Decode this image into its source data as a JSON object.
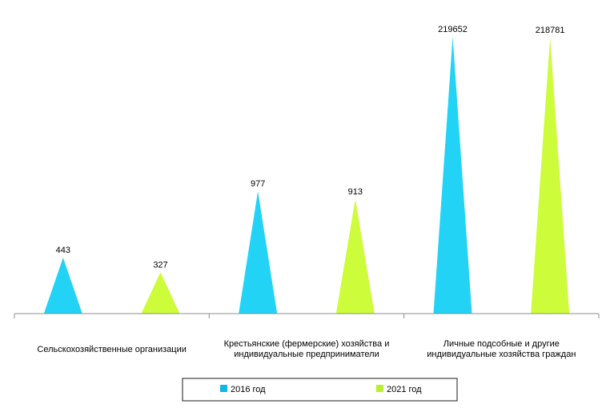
{
  "chart_data": {
    "type": "bar",
    "mark_shape": "triangle",
    "categories": [
      [
        "Сельскохозяйственные организации"
      ],
      [
        "Крестьянские (фермерские) хозяйства и",
        "индивидуальные предприниматели"
      ],
      [
        "Личные подсобные и другие",
        "индивидуальные хозяйства граждан"
      ]
    ],
    "series": [
      {
        "name": "2016 год",
        "color": "#22d3f5",
        "legend_color": "#11b5e8",
        "values": [
          443,
          977,
          219652
        ]
      },
      {
        "name": "2021 год",
        "color": "#cdfc3a",
        "legend_color": "#b9ef2c",
        "values": [
          327,
          913,
          218781
        ]
      }
    ],
    "value_labels": [
      [
        "443",
        "977",
        "219652"
      ],
      [
        "327",
        "913",
        "218781"
      ]
    ],
    "scale": "broken-nonlinear",
    "grid": false,
    "legend_position": "bottom-center",
    "title": "",
    "xlabel": "",
    "ylabel": ""
  }
}
